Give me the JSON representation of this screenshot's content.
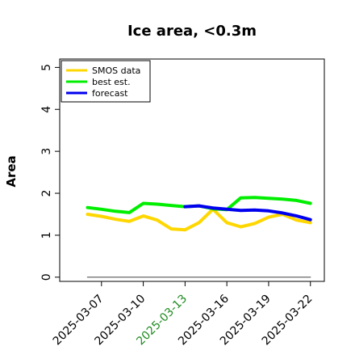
{
  "chart_data": {
    "type": "line",
    "title": "Ice area, <0.3m",
    "xlabel": "",
    "ylabel": "Area",
    "x": [
      "2025-03-06",
      "2025-03-07",
      "2025-03-08",
      "2025-03-09",
      "2025-03-10",
      "2025-03-11",
      "2025-03-12",
      "2025-03-13",
      "2025-03-14",
      "2025-03-15",
      "2025-03-16",
      "2025-03-17",
      "2025-03-18",
      "2025-03-19",
      "2025-03-20",
      "2025-03-21",
      "2025-03-22"
    ],
    "xlim": [
      "2025-03-04",
      "2025-03-23"
    ],
    "ylim": [
      -0.1,
      5.2
    ],
    "yticks": [
      0,
      1,
      2,
      3,
      4,
      5
    ],
    "xticks": [
      {
        "label": "2025-03-07",
        "color": "#000000"
      },
      {
        "label": "2025-03-10",
        "color": "#000000"
      },
      {
        "label": "2025-03-13",
        "color": "#228B22"
      },
      {
        "label": "2025-03-16",
        "color": "#000000"
      },
      {
        "label": "2025-03-19",
        "color": "#000000"
      },
      {
        "label": "2025-03-22",
        "color": "#000000"
      }
    ],
    "grid": false,
    "legend_position": "top-left",
    "series": [
      {
        "name": "SMOS data",
        "color": "#FFD700",
        "x": [
          "2025-03-06",
          "2025-03-07",
          "2025-03-08",
          "2025-03-09",
          "2025-03-10",
          "2025-03-11",
          "2025-03-12",
          "2025-03-13",
          "2025-03-14",
          "2025-03-15",
          "2025-03-16",
          "2025-03-17",
          "2025-03-18",
          "2025-03-19",
          "2025-03-20",
          "2025-03-21",
          "2025-03-22"
        ],
        "values": [
          1.5,
          1.45,
          1.38,
          1.33,
          1.46,
          1.36,
          1.15,
          1.13,
          1.3,
          1.62,
          1.3,
          1.2,
          1.28,
          1.43,
          1.5,
          1.36,
          1.3
        ]
      },
      {
        "name": "best est.",
        "color": "#00EE00",
        "x": [
          "2025-03-06",
          "2025-03-07",
          "2025-03-08",
          "2025-03-09",
          "2025-03-10",
          "2025-03-11",
          "2025-03-12",
          "2025-03-13",
          "2025-03-14",
          "2025-03-15",
          "2025-03-16",
          "2025-03-17",
          "2025-03-18",
          "2025-03-19",
          "2025-03-20",
          "2025-03-21",
          "2025-03-22"
        ],
        "values": [
          1.66,
          1.62,
          1.57,
          1.54,
          1.76,
          1.74,
          1.71,
          1.68,
          1.7,
          1.63,
          1.61,
          1.89,
          1.9,
          1.88,
          1.86,
          1.83,
          1.76
        ]
      },
      {
        "name": "forecast",
        "color": "#0000EE",
        "x": [
          "2025-03-13",
          "2025-03-14",
          "2025-03-15",
          "2025-03-16",
          "2025-03-17",
          "2025-03-18",
          "2025-03-19",
          "2025-03-20",
          "2025-03-21",
          "2025-03-22"
        ],
        "values": [
          1.68,
          1.7,
          1.65,
          1.62,
          1.59,
          1.6,
          1.58,
          1.53,
          1.46,
          1.37
        ]
      },
      {
        "name": "",
        "color": "#808080",
        "x": [
          "2025-03-06",
          "2025-03-22"
        ],
        "values": [
          0.0,
          0.0
        ]
      }
    ]
  }
}
